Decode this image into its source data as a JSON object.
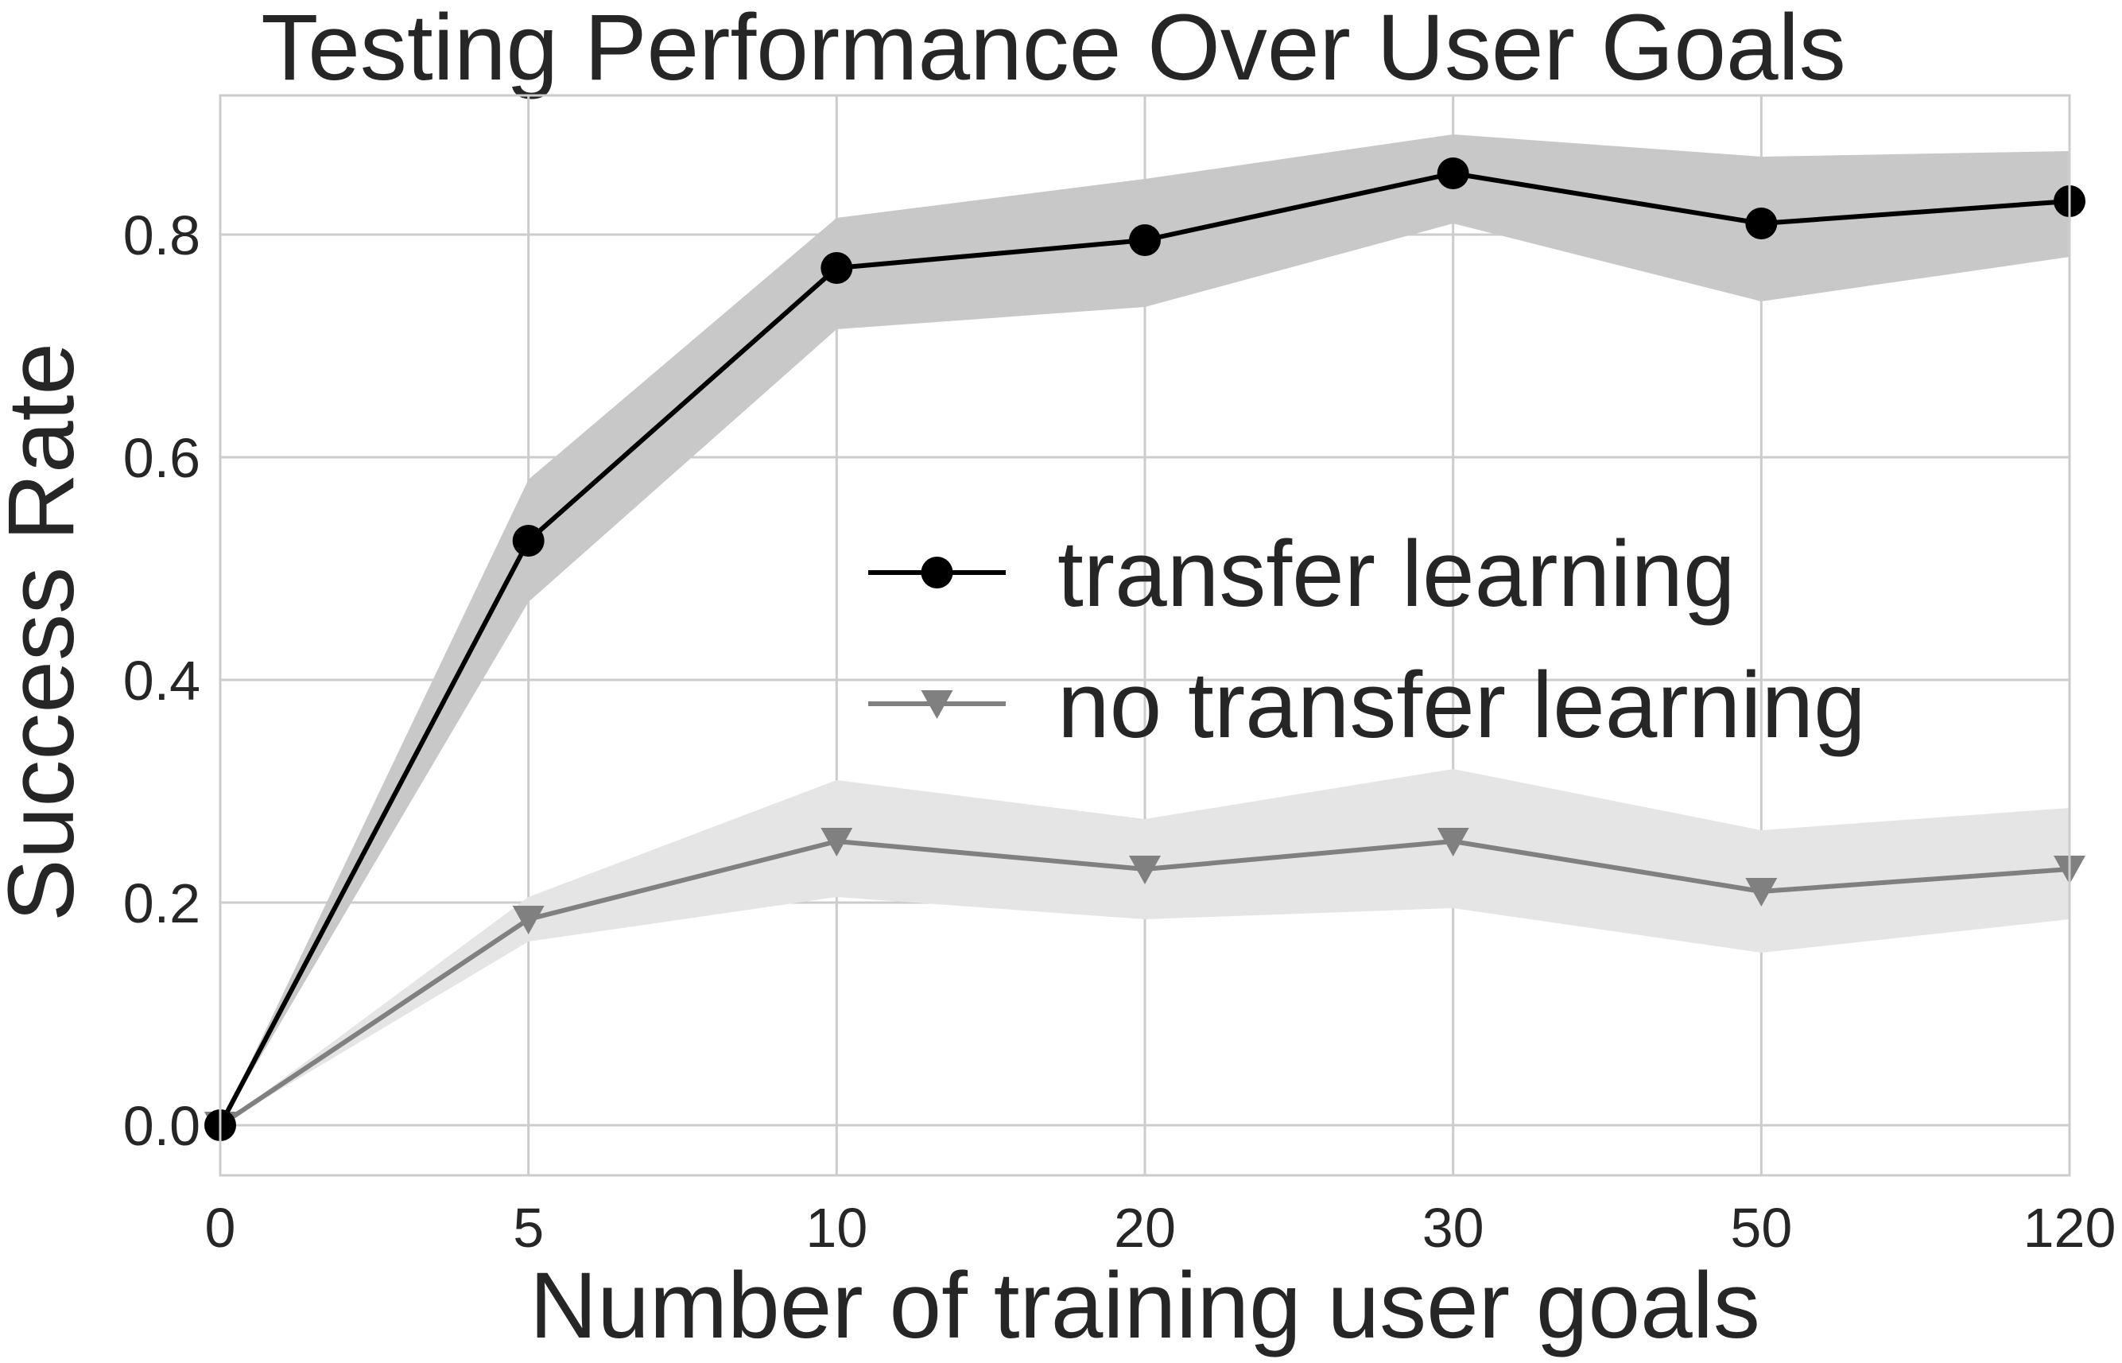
{
  "chart_data": {
    "type": "line",
    "title": "Testing Performance Over User Goals",
    "xlabel": "Number of training user goals",
    "ylabel": "Success Rate",
    "categories": [
      "0",
      "5",
      "10",
      "20",
      "30",
      "50",
      "120"
    ],
    "yticks": [
      "0.0",
      "0.2",
      "0.4",
      "0.6",
      "0.8"
    ],
    "ylim": [
      -0.045,
      0.925
    ],
    "grid": true,
    "legend_position": "center-right",
    "series": [
      {
        "name": "transfer learning",
        "marker": "circle",
        "color": "#000000",
        "band_color": "#c8c8c8",
        "values": [
          0.0,
          0.525,
          0.77,
          0.795,
          0.855,
          0.81,
          0.83
        ],
        "lower": [
          0.0,
          0.47,
          0.715,
          0.735,
          0.81,
          0.74,
          0.78
        ],
        "upper": [
          0.0,
          0.58,
          0.815,
          0.85,
          0.89,
          0.87,
          0.875
        ]
      },
      {
        "name": "no transfer learning",
        "marker": "triangle-down",
        "color": "#808080",
        "band_color": "#e5e5e5",
        "values": [
          0.0,
          0.185,
          0.255,
          0.23,
          0.255,
          0.21,
          0.23
        ],
        "lower": [
          0.0,
          0.165,
          0.205,
          0.185,
          0.195,
          0.155,
          0.185
        ],
        "upper": [
          0.0,
          0.205,
          0.31,
          0.275,
          0.32,
          0.265,
          0.285
        ]
      }
    ]
  }
}
